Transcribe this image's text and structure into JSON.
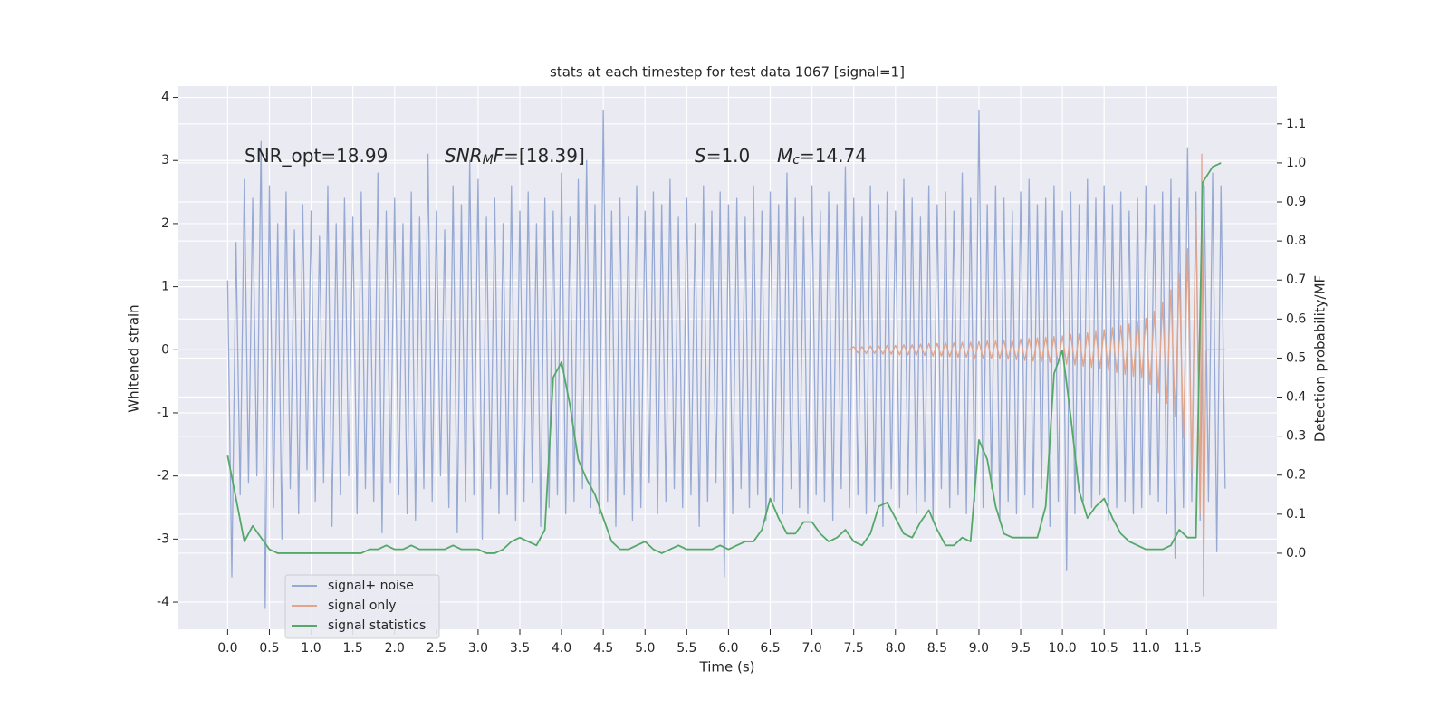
{
  "chart_data": {
    "type": "line",
    "title": "stats at each timestep for test data 1067 [signal=1]",
    "xlabel": "Time (s)",
    "ylabel": "Whitened strain",
    "y2label": "Detection probability/MF",
    "background": "#eaeaf2",
    "grid": true,
    "legend": "lower left",
    "xlim": [
      -0.59,
      12.57
    ],
    "ylim": [
      -4.43,
      4.18
    ],
    "y2lim": [
      -0.195,
      1.197
    ],
    "xticks": [
      {
        "value": 0,
        "label": "0.0"
      },
      0.5,
      {
        "value": 1,
        "label": "1.0"
      },
      1.5,
      {
        "value": 2,
        "label": "2.0"
      },
      2.5,
      {
        "value": 3,
        "label": "3.0"
      },
      3.5,
      {
        "value": 4,
        "label": "4.0"
      },
      4.5,
      {
        "value": 5,
        "label": "5.0"
      },
      5.5,
      {
        "value": 6,
        "label": "6.0"
      },
      6.5,
      {
        "value": 7,
        "label": "7.0"
      },
      7.5,
      {
        "value": 8,
        "label": "8.0"
      },
      8.5,
      {
        "value": 9,
        "label": "9.0"
      },
      9.5,
      {
        "value": 10,
        "label": "10.0"
      },
      10.5,
      {
        "value": 11,
        "label": "11.0"
      },
      11.5
    ],
    "yticks": [
      -4,
      -3,
      -2,
      -1,
      0,
      1,
      2,
      3,
      4
    ],
    "y2ticks": [
      {
        "value": 0,
        "label": "0.0"
      },
      0.1,
      0.2,
      0.3,
      0.4,
      0.5,
      0.6,
      0.7,
      0.8,
      0.9,
      {
        "value": 1,
        "label": "1.0"
      },
      1.1
    ],
    "annotations": [
      [
        {
          "text": "SNR_opt=18.99"
        }
      ],
      [
        {
          "text": "SNR",
          "italic": true
        },
        {
          "text": "M",
          "italic": true,
          "sub": true
        },
        {
          "text": "F",
          "italic": true
        },
        {
          "text": "=[18.39]"
        }
      ],
      [
        {
          "text": "S",
          "italic": true
        },
        {
          "text": "=1.0"
        }
      ],
      [
        {
          "text": "M",
          "italic": true
        },
        {
          "text": "c",
          "italic": true,
          "sub": true
        },
        {
          "text": "=14.74"
        }
      ]
    ],
    "series": [
      {
        "name": "signal+ noise",
        "color": "#98aad3",
        "x": [
          0,
          0.05,
          0.1,
          0.15,
          0.2,
          0.25,
          0.3,
          0.35,
          0.4,
          0.45,
          0.5,
          0.55,
          0.6,
          0.65,
          0.7,
          0.75,
          0.8,
          0.85,
          0.9,
          0.95,
          1,
          1.05,
          1.1,
          1.15,
          1.2,
          1.25,
          1.3,
          1.35,
          1.4,
          1.45,
          1.5,
          1.55,
          1.6,
          1.65,
          1.7,
          1.75,
          1.8,
          1.85,
          1.9,
          1.95,
          2,
          2.05,
          2.1,
          2.15,
          2.2,
          2.25,
          2.3,
          2.35,
          2.4,
          2.45,
          2.5,
          2.55,
          2.6,
          2.65,
          2.7,
          2.75,
          2.8,
          2.85,
          2.9,
          2.95,
          3,
          3.05,
          3.1,
          3.15,
          3.2,
          3.25,
          3.3,
          3.35,
          3.4,
          3.45,
          3.5,
          3.55,
          3.6,
          3.65,
          3.7,
          3.75,
          3.8,
          3.85,
          3.9,
          3.95,
          4,
          4.05,
          4.1,
          4.15,
          4.2,
          4.25,
          4.3,
          4.35,
          4.4,
          4.45,
          4.5,
          4.55,
          4.6,
          4.65,
          4.7,
          4.75,
          4.8,
          4.85,
          4.9,
          4.95,
          5,
          5.05,
          5.1,
          5.15,
          5.2,
          5.25,
          5.3,
          5.35,
          5.4,
          5.45,
          5.5,
          5.55,
          5.6,
          5.65,
          5.7,
          5.75,
          5.8,
          5.85,
          5.9,
          5.95,
          6,
          6.05,
          6.1,
          6.15,
          6.2,
          6.25,
          6.3,
          6.35,
          6.4,
          6.45,
          6.5,
          6.55,
          6.6,
          6.65,
          6.7,
          6.75,
          6.8,
          6.85,
          6.9,
          6.95,
          7,
          7.05,
          7.1,
          7.15,
          7.2,
          7.25,
          7.3,
          7.35,
          7.4,
          7.45,
          7.5,
          7.55,
          7.6,
          7.65,
          7.7,
          7.75,
          7.8,
          7.85,
          7.9,
          7.95,
          8,
          8.05,
          8.1,
          8.15,
          8.2,
          8.25,
          8.3,
          8.35,
          8.4,
          8.45,
          8.5,
          8.55,
          8.6,
          8.65,
          8.7,
          8.75,
          8.8,
          8.85,
          8.9,
          8.95,
          9,
          9.05,
          9.1,
          9.15,
          9.2,
          9.25,
          9.3,
          9.35,
          9.4,
          9.45,
          9.5,
          9.55,
          9.6,
          9.65,
          9.7,
          9.75,
          9.8,
          9.85,
          9.9,
          9.95,
          10,
          10.05,
          10.1,
          10.15,
          10.2,
          10.25,
          10.3,
          10.35,
          10.4,
          10.45,
          10.5,
          10.55,
          10.6,
          10.65,
          10.7,
          10.75,
          10.8,
          10.85,
          10.9,
          10.95,
          11,
          11.05,
          11.1,
          11.15,
          11.2,
          11.25,
          11.3,
          11.35,
          11.4,
          11.45,
          11.5,
          11.55,
          11.6,
          11.65,
          11.7,
          11.75,
          11.8,
          11.85,
          11.9,
          11.95
        ],
        "values": [
          1.1,
          -3.6,
          1.7,
          -2.3,
          2.7,
          -2.1,
          2.4,
          -2.0,
          3.3,
          -4.1,
          2.6,
          -2.5,
          2.0,
          -3.0,
          2.5,
          -2.2,
          1.9,
          -2.6,
          2.3,
          -1.9,
          2.2,
          -2.4,
          1.8,
          -2.1,
          2.6,
          -2.8,
          2.0,
          -2.3,
          2.4,
          -2.0,
          2.1,
          -2.6,
          2.5,
          -2.2,
          1.9,
          -2.4,
          2.8,
          -2.9,
          2.2,
          -2.1,
          2.4,
          -2.3,
          2.0,
          -2.6,
          2.5,
          -2.7,
          2.1,
          -2.2,
          3.1,
          -2.4,
          2.2,
          -2.0,
          1.9,
          -2.5,
          2.6,
          -2.9,
          2.3,
          -2.4,
          3.0,
          -2.3,
          2.7,
          -3.0,
          2.1,
          -2.2,
          2.4,
          -2.6,
          2.0,
          -2.3,
          2.6,
          -2.7,
          2.2,
          -2.4,
          2.5,
          -2.1,
          2.0,
          -2.8,
          2.4,
          -2.5,
          2.2,
          -2.3,
          2.8,
          -2.6,
          2.1,
          -2.4,
          2.7,
          -2.2,
          3.0,
          -2.5,
          2.3,
          -2.6,
          3.8,
          -2.4,
          2.2,
          -2.8,
          2.4,
          -2.3,
          2.1,
          -2.7,
          2.6,
          -2.5,
          2.2,
          -2.1,
          2.5,
          -2.6,
          2.3,
          -2.4,
          2.7,
          -2.2,
          2.1,
          -2.5,
          2.4,
          -2.3,
          2.0,
          -2.8,
          2.6,
          -2.4,
          2.2,
          -2.1,
          2.5,
          -3.6,
          2.3,
          -2.6,
          2.4,
          -2.2,
          2.1,
          -2.5,
          2.6,
          -2.3,
          2.2,
          -2.7,
          2.5,
          -2.4,
          2.3,
          -2.6,
          2.8,
          -2.2,
          2.4,
          -2.5,
          2.1,
          -2.6,
          2.6,
          -2.3,
          2.2,
          -2.4,
          2.5,
          -2.7,
          2.3,
          -2.2,
          2.9,
          -2.5,
          2.4,
          -2.3,
          2.1,
          -2.6,
          2.6,
          -2.4,
          2.3,
          -2.8,
          2.5,
          -2.2,
          2.2,
          -2.5,
          2.7,
          -2.3,
          2.4,
          -2.6,
          2.1,
          -2.4,
          2.6,
          -2.7,
          2.3,
          -2.2,
          2.5,
          -2.5,
          2.2,
          -2.3,
          2.8,
          -2.6,
          2.4,
          -2.4,
          3.8,
          -2.5,
          2.3,
          -2.2,
          2.6,
          -2.7,
          2.4,
          -2.4,
          2.2,
          -2.6,
          2.5,
          -2.3,
          2.7,
          -2.5,
          2.3,
          -2.2,
          2.4,
          -2.8,
          2.6,
          -2.4,
          2.2,
          -3.5,
          2.5,
          -2.6,
          2.3,
          -2.4,
          2.7,
          -2.5,
          2.4,
          -2.3,
          2.6,
          -2.7,
          2.3,
          -2.5,
          2.5,
          -2.4,
          2.2,
          -2.6,
          2.4,
          -2.5,
          2.6,
          -2.3,
          2.3,
          -2.4,
          2.5,
          -2.6,
          2.7,
          -3.3,
          2.4,
          -2.5,
          3.2,
          -2.4,
          2.5,
          -2.7,
          2.6,
          -2.4,
          2.8,
          -3.2,
          2.6,
          -2.2
        ]
      },
      {
        "name": "signal only",
        "color": "#e0a58c",
        "x": [
          0,
          7.45,
          7.5,
          7.55,
          7.6,
          7.65,
          7.7,
          7.75,
          7.8,
          7.85,
          7.9,
          7.95,
          8,
          8.05,
          8.1,
          8.15,
          8.2,
          8.25,
          8.3,
          8.35,
          8.4,
          8.45,
          8.5,
          8.55,
          8.6,
          8.65,
          8.7,
          8.75,
          8.8,
          8.85,
          8.9,
          8.95,
          9,
          9.05,
          9.1,
          9.15,
          9.2,
          9.25,
          9.3,
          9.35,
          9.4,
          9.45,
          9.5,
          9.55,
          9.6,
          9.65,
          9.7,
          9.75,
          9.8,
          9.85,
          9.9,
          9.95,
          10,
          10.05,
          10.1,
          10.15,
          10.2,
          10.25,
          10.3,
          10.35,
          10.4,
          10.45,
          10.5,
          10.55,
          10.6,
          10.65,
          10.7,
          10.75,
          10.8,
          10.85,
          10.9,
          10.95,
          11,
          11.05,
          11.1,
          11.15,
          11.2,
          11.25,
          11.3,
          11.35,
          11.4,
          11.45,
          11.5,
          11.55,
          11.6,
          11.65,
          11.67,
          11.69,
          11.72,
          11.95
        ],
        "values": [
          0,
          0,
          0.05,
          -0.05,
          0.05,
          -0.06,
          0.06,
          -0.06,
          0.06,
          -0.07,
          0.07,
          -0.07,
          0.07,
          -0.08,
          0.08,
          -0.08,
          0.08,
          -0.09,
          0.09,
          -0.09,
          0.1,
          -0.1,
          0.1,
          -0.1,
          0.11,
          -0.11,
          0.11,
          -0.12,
          0.12,
          -0.12,
          0.12,
          -0.13,
          0.13,
          -0.13,
          0.14,
          -0.14,
          0.14,
          -0.14,
          0.15,
          -0.15,
          0.15,
          -0.16,
          0.17,
          -0.17,
          0.18,
          -0.18,
          0.19,
          -0.19,
          0.2,
          -0.2,
          0.21,
          -0.22,
          0.22,
          -0.23,
          0.24,
          -0.24,
          0.25,
          -0.26,
          0.27,
          -0.28,
          0.29,
          -0.3,
          0.32,
          -0.33,
          0.35,
          -0.36,
          0.38,
          -0.39,
          0.41,
          -0.42,
          0.44,
          -0.45,
          0.5,
          -0.55,
          0.6,
          -0.68,
          0.75,
          -0.85,
          0.95,
          -1.05,
          1.2,
          -1.4,
          1.6,
          -1.9,
          2.2,
          -2.6,
          3.1,
          -3.9,
          0,
          0
        ]
      },
      {
        "name": "signal statistics",
        "color": "#55a868",
        "axis": "y2",
        "x": [
          0,
          0.1,
          0.2,
          0.3,
          0.4,
          0.5,
          0.6,
          0.7,
          0.8,
          0.9,
          1,
          1.1,
          1.2,
          1.3,
          1.4,
          1.5,
          1.6,
          1.7,
          1.8,
          1.9,
          2,
          2.1,
          2.2,
          2.3,
          2.4,
          2.5,
          2.6,
          2.7,
          2.8,
          2.9,
          3,
          3.1,
          3.2,
          3.3,
          3.4,
          3.5,
          3.6,
          3.7,
          3.8,
          3.9,
          4,
          4.1,
          4.2,
          4.3,
          4.4,
          4.5,
          4.6,
          4.7,
          4.8,
          4.9,
          5,
          5.1,
          5.2,
          5.3,
          5.4,
          5.5,
          5.6,
          5.7,
          5.8,
          5.9,
          6,
          6.1,
          6.2,
          6.3,
          6.4,
          6.5,
          6.6,
          6.7,
          6.8,
          6.9,
          7,
          7.1,
          7.2,
          7.3,
          7.4,
          7.5,
          7.6,
          7.7,
          7.8,
          7.9,
          8,
          8.1,
          8.2,
          8.3,
          8.4,
          8.5,
          8.6,
          8.7,
          8.8,
          8.9,
          9,
          9.1,
          9.2,
          9.3,
          9.4,
          9.5,
          9.6,
          9.7,
          9.8,
          9.9,
          10,
          10.1,
          10.2,
          10.3,
          10.4,
          10.5,
          10.6,
          10.7,
          10.8,
          10.9,
          11,
          11.1,
          11.2,
          11.3,
          11.4,
          11.5,
          11.6,
          11.68,
          11.8,
          11.9
        ],
        "values": [
          0.25,
          0.14,
          0.03,
          0.07,
          0.04,
          0.01,
          0,
          0,
          0,
          0,
          0,
          0,
          0,
          0,
          0,
          0,
          0,
          0.01,
          0.01,
          0.02,
          0.01,
          0.01,
          0.02,
          0.01,
          0.01,
          0.01,
          0.01,
          0.02,
          0.01,
          0.01,
          0.01,
          0,
          0,
          0.01,
          0.03,
          0.04,
          0.03,
          0.02,
          0.06,
          0.45,
          0.49,
          0.38,
          0.24,
          0.19,
          0.15,
          0.09,
          0.03,
          0.01,
          0.01,
          0.02,
          0.03,
          0.01,
          0,
          0.01,
          0.02,
          0.01,
          0.01,
          0.01,
          0.01,
          0.02,
          0.01,
          0.02,
          0.03,
          0.03,
          0.06,
          0.14,
          0.09,
          0.05,
          0.05,
          0.08,
          0.08,
          0.05,
          0.03,
          0.04,
          0.06,
          0.03,
          0.02,
          0.05,
          0.12,
          0.13,
          0.09,
          0.05,
          0.04,
          0.08,
          0.11,
          0.06,
          0.02,
          0.02,
          0.04,
          0.03,
          0.29,
          0.24,
          0.12,
          0.05,
          0.04,
          0.04,
          0.04,
          0.04,
          0.12,
          0.46,
          0.52,
          0.35,
          0.16,
          0.09,
          0.12,
          0.14,
          0.09,
          0.05,
          0.03,
          0.02,
          0.01,
          0.01,
          0.01,
          0.02,
          0.06,
          0.04,
          0.04,
          0.95,
          0.99,
          1.0
        ]
      }
    ]
  }
}
